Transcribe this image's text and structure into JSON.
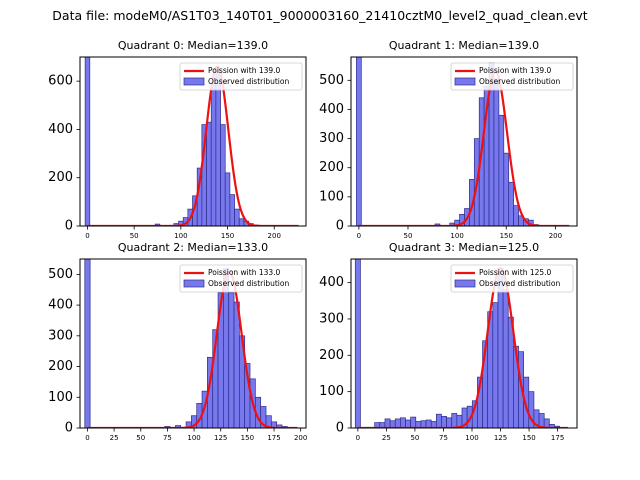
{
  "suptitle": "Data file: modeM0/AS1T03_140T01_9000003160_21410cztM0_level2_quad_clean.evt",
  "legend": {
    "observed_label": "Observed distribution"
  },
  "colors": {
    "bar_fill": "#7878ee",
    "bar_edge": "#2d2d8a",
    "fit_line": "#ee1111"
  },
  "chart_data": [
    {
      "type": "bar",
      "title": "Quadrant 0: Median=139.0",
      "fit_label": "Poission with 139.0",
      "median": 139.0,
      "fit_peak": 660,
      "xlim": [
        -8,
        234
      ],
      "ylim": [
        0,
        700
      ],
      "xticks": [
        0,
        50,
        100,
        150,
        200
      ],
      "yticks": [
        0,
        200,
        400,
        600
      ],
      "bin_width": 5,
      "bins": [
        {
          "x": 0,
          "y": 700
        },
        {
          "x": 75,
          "y": 8
        },
        {
          "x": 90,
          "y": 3
        },
        {
          "x": 95,
          "y": 10
        },
        {
          "x": 100,
          "y": 20
        },
        {
          "x": 105,
          "y": 35
        },
        {
          "x": 110,
          "y": 70
        },
        {
          "x": 115,
          "y": 125
        },
        {
          "x": 120,
          "y": 240
        },
        {
          "x": 125,
          "y": 420
        },
        {
          "x": 130,
          "y": 430
        },
        {
          "x": 135,
          "y": 590
        },
        {
          "x": 140,
          "y": 640
        },
        {
          "x": 145,
          "y": 420
        },
        {
          "x": 150,
          "y": 220
        },
        {
          "x": 155,
          "y": 130
        },
        {
          "x": 160,
          "y": 70
        },
        {
          "x": 165,
          "y": 30
        },
        {
          "x": 170,
          "y": 20
        },
        {
          "x": 175,
          "y": 10
        },
        {
          "x": 180,
          "y": 4
        }
      ]
    },
    {
      "type": "bar",
      "title": "Quadrant 1: Median=139.0",
      "fit_label": "Poission with 139.0",
      "median": 139.0,
      "fit_peak": 530,
      "xlim": [
        -8,
        222
      ],
      "ylim": [
        0,
        580
      ],
      "xticks": [
        0,
        50,
        100,
        150,
        200
      ],
      "yticks": [
        0,
        100,
        200,
        300,
        400,
        500
      ],
      "bin_width": 5,
      "bins": [
        {
          "x": 0,
          "y": 580
        },
        {
          "x": 80,
          "y": 7
        },
        {
          "x": 95,
          "y": 10
        },
        {
          "x": 100,
          "y": 20
        },
        {
          "x": 105,
          "y": 40
        },
        {
          "x": 110,
          "y": 60
        },
        {
          "x": 115,
          "y": 160
        },
        {
          "x": 120,
          "y": 300
        },
        {
          "x": 125,
          "y": 440
        },
        {
          "x": 130,
          "y": 480
        },
        {
          "x": 135,
          "y": 560
        },
        {
          "x": 140,
          "y": 505
        },
        {
          "x": 145,
          "y": 380
        },
        {
          "x": 150,
          "y": 250
        },
        {
          "x": 155,
          "y": 150
        },
        {
          "x": 160,
          "y": 70
        },
        {
          "x": 165,
          "y": 35
        },
        {
          "x": 170,
          "y": 25
        },
        {
          "x": 175,
          "y": 20
        },
        {
          "x": 180,
          "y": 5
        }
      ]
    },
    {
      "type": "bar",
      "title": "Quadrant 2: Median=133.0",
      "fit_label": "Poission with 133.0",
      "median": 133.0,
      "fit_peak": 510,
      "xlim": [
        -7,
        205
      ],
      "ylim": [
        0,
        550
      ],
      "xticks": [
        0,
        25,
        50,
        75,
        100,
        125,
        150,
        175,
        200
      ],
      "yticks": [
        0,
        100,
        200,
        300,
        400,
        500
      ],
      "bin_width": 5,
      "bins": [
        {
          "x": 0,
          "y": 550
        },
        {
          "x": 75,
          "y": 5
        },
        {
          "x": 85,
          "y": 8
        },
        {
          "x": 95,
          "y": 20
        },
        {
          "x": 100,
          "y": 40
        },
        {
          "x": 105,
          "y": 80
        },
        {
          "x": 110,
          "y": 120
        },
        {
          "x": 115,
          "y": 230
        },
        {
          "x": 120,
          "y": 320
        },
        {
          "x": 125,
          "y": 440
        },
        {
          "x": 130,
          "y": 520
        },
        {
          "x": 135,
          "y": 440
        },
        {
          "x": 140,
          "y": 410
        },
        {
          "x": 145,
          "y": 300
        },
        {
          "x": 150,
          "y": 210
        },
        {
          "x": 155,
          "y": 160
        },
        {
          "x": 160,
          "y": 100
        },
        {
          "x": 165,
          "y": 70
        },
        {
          "x": 170,
          "y": 40
        },
        {
          "x": 175,
          "y": 20
        },
        {
          "x": 180,
          "y": 10
        },
        {
          "x": 185,
          "y": 5
        }
      ]
    },
    {
      "type": "bar",
      "title": "Quadrant 3: Median=125.0",
      "fit_label": "Poission with 125.0",
      "median": 125.0,
      "fit_peak": 440,
      "xlim": [
        -6,
        192
      ],
      "ylim": [
        0,
        465
      ],
      "xticks": [
        0,
        25,
        50,
        75,
        100,
        125,
        150,
        175
      ],
      "yticks": [
        0,
        100,
        200,
        300,
        400
      ],
      "bin_width": 4.5,
      "bins": [
        {
          "x": 0,
          "y": 465
        },
        {
          "x": 17,
          "y": 15
        },
        {
          "x": 21.5,
          "y": 15
        },
        {
          "x": 26,
          "y": 25
        },
        {
          "x": 30.5,
          "y": 20
        },
        {
          "x": 35,
          "y": 25
        },
        {
          "x": 39.5,
          "y": 28
        },
        {
          "x": 44,
          "y": 22
        },
        {
          "x": 48.5,
          "y": 30
        },
        {
          "x": 53,
          "y": 18
        },
        {
          "x": 57.5,
          "y": 20
        },
        {
          "x": 62,
          "y": 22
        },
        {
          "x": 66.5,
          "y": 18
        },
        {
          "x": 71,
          "y": 38
        },
        {
          "x": 75.5,
          "y": 32
        },
        {
          "x": 80,
          "y": 28
        },
        {
          "x": 84.5,
          "y": 40
        },
        {
          "x": 89,
          "y": 35
        },
        {
          "x": 93.5,
          "y": 55
        },
        {
          "x": 98,
          "y": 60
        },
        {
          "x": 102.5,
          "y": 75
        },
        {
          "x": 107,
          "y": 140
        },
        {
          "x": 111.5,
          "y": 240
        },
        {
          "x": 116,
          "y": 320
        },
        {
          "x": 120.5,
          "y": 345
        },
        {
          "x": 125,
          "y": 440
        },
        {
          "x": 129.5,
          "y": 380
        },
        {
          "x": 134,
          "y": 305
        },
        {
          "x": 138.5,
          "y": 225
        },
        {
          "x": 143,
          "y": 210
        },
        {
          "x": 147.5,
          "y": 140
        },
        {
          "x": 152,
          "y": 100
        },
        {
          "x": 156.5,
          "y": 50
        },
        {
          "x": 161,
          "y": 40
        },
        {
          "x": 165.5,
          "y": 25
        },
        {
          "x": 170,
          "y": 10
        },
        {
          "x": 174.5,
          "y": 5
        }
      ]
    }
  ]
}
